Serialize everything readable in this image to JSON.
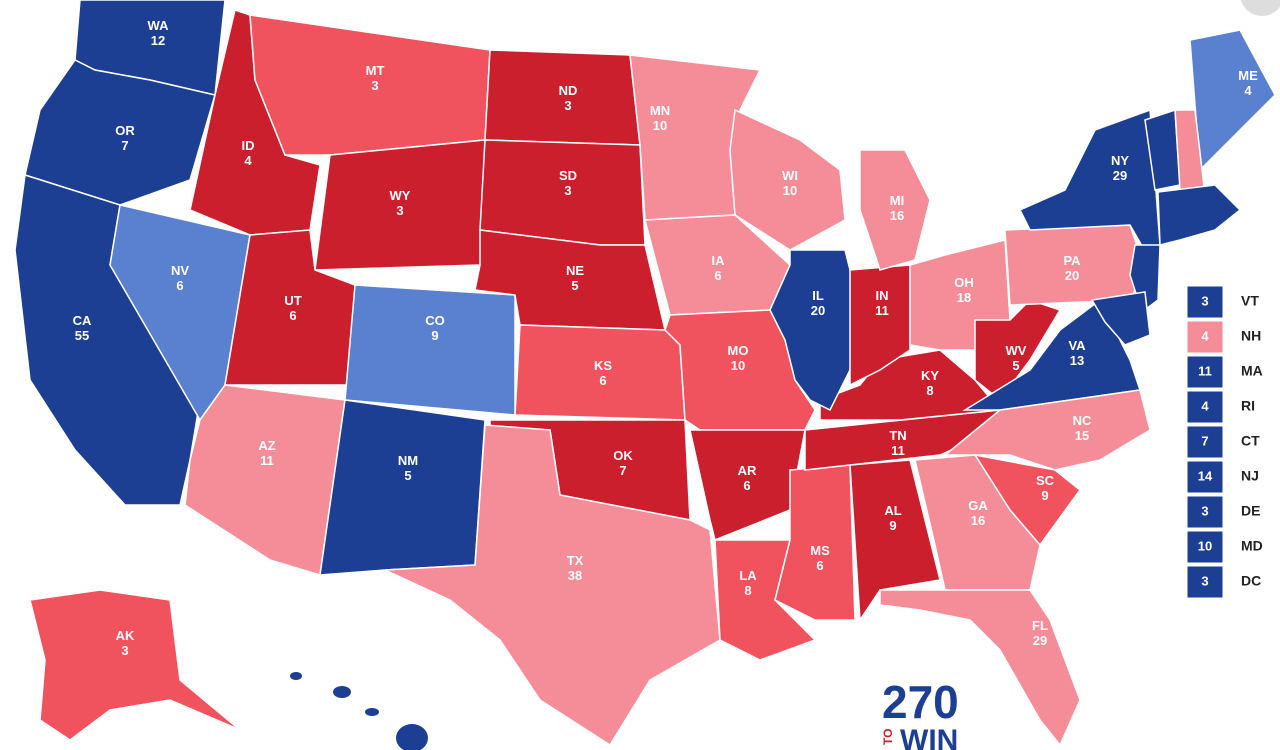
{
  "palette": {
    "safe_dem": "#1d3f93",
    "lean_dem": "#5a80d0",
    "safe_rep": "#cb1f2e",
    "likely_rep": "#f0525e",
    "lean_rep": "#f48d98"
  },
  "states": [
    {
      "abbr": "WA",
      "votes": 12,
      "rating": "safe_dem"
    },
    {
      "abbr": "OR",
      "votes": 7,
      "rating": "safe_dem"
    },
    {
      "abbr": "CA",
      "votes": 55,
      "rating": "safe_dem"
    },
    {
      "abbr": "NV",
      "votes": 6,
      "rating": "lean_dem"
    },
    {
      "abbr": "ID",
      "votes": 4,
      "rating": "safe_rep"
    },
    {
      "abbr": "MT",
      "votes": 3,
      "rating": "likely_rep"
    },
    {
      "abbr": "WY",
      "votes": 3,
      "rating": "safe_rep"
    },
    {
      "abbr": "UT",
      "votes": 6,
      "rating": "safe_rep"
    },
    {
      "abbr": "CO",
      "votes": 9,
      "rating": "lean_dem"
    },
    {
      "abbr": "AZ",
      "votes": 11,
      "rating": "lean_rep"
    },
    {
      "abbr": "NM",
      "votes": 5,
      "rating": "safe_dem"
    },
    {
      "abbr": "ND",
      "votes": 3,
      "rating": "safe_rep"
    },
    {
      "abbr": "SD",
      "votes": 3,
      "rating": "safe_rep"
    },
    {
      "abbr": "NE",
      "votes": 5,
      "rating": "safe_rep"
    },
    {
      "abbr": "KS",
      "votes": 6,
      "rating": "likely_rep"
    },
    {
      "abbr": "OK",
      "votes": 7,
      "rating": "safe_rep"
    },
    {
      "abbr": "TX",
      "votes": 38,
      "rating": "lean_rep"
    },
    {
      "abbr": "MN",
      "votes": 10,
      "rating": "lean_rep"
    },
    {
      "abbr": "IA",
      "votes": 6,
      "rating": "lean_rep"
    },
    {
      "abbr": "MO",
      "votes": 10,
      "rating": "likely_rep"
    },
    {
      "abbr": "AR",
      "votes": 6,
      "rating": "safe_rep"
    },
    {
      "abbr": "LA",
      "votes": 8,
      "rating": "likely_rep"
    },
    {
      "abbr": "MS",
      "votes": 6,
      "rating": "likely_rep"
    },
    {
      "abbr": "AL",
      "votes": 9,
      "rating": "safe_rep"
    },
    {
      "abbr": "TN",
      "votes": 11,
      "rating": "safe_rep"
    },
    {
      "abbr": "KY",
      "votes": 8,
      "rating": "safe_rep"
    },
    {
      "abbr": "IL",
      "votes": 20,
      "rating": "safe_dem"
    },
    {
      "abbr": "IN",
      "votes": 11,
      "rating": "safe_rep"
    },
    {
      "abbr": "WI",
      "votes": 10,
      "rating": "lean_rep"
    },
    {
      "abbr": "MI",
      "votes": 16,
      "rating": "lean_rep"
    },
    {
      "abbr": "OH",
      "votes": 18,
      "rating": "lean_rep"
    },
    {
      "abbr": "WV",
      "votes": 5,
      "rating": "safe_rep"
    },
    {
      "abbr": "PA",
      "votes": 20,
      "rating": "lean_rep"
    },
    {
      "abbr": "NY",
      "votes": 29,
      "rating": "safe_dem"
    },
    {
      "abbr": "VA",
      "votes": 13,
      "rating": "safe_dem"
    },
    {
      "abbr": "NC",
      "votes": 15,
      "rating": "lean_rep"
    },
    {
      "abbr": "SC",
      "votes": 9,
      "rating": "likely_rep"
    },
    {
      "abbr": "GA",
      "votes": 16,
      "rating": "lean_rep"
    },
    {
      "abbr": "FL",
      "votes": 29,
      "rating": "lean_rep"
    },
    {
      "abbr": "ME",
      "votes": 4,
      "rating": "lean_dem"
    },
    {
      "abbr": "AK",
      "votes": 3,
      "rating": "likely_rep"
    }
  ],
  "legend": [
    {
      "abbr": "VT",
      "votes": 3,
      "rating": "safe_dem"
    },
    {
      "abbr": "NH",
      "votes": 4,
      "rating": "lean_rep"
    },
    {
      "abbr": "MA",
      "votes": 11,
      "rating": "safe_dem"
    },
    {
      "abbr": "RI",
      "votes": 4,
      "rating": "safe_dem"
    },
    {
      "abbr": "CT",
      "votes": 7,
      "rating": "safe_dem"
    },
    {
      "abbr": "NJ",
      "votes": 14,
      "rating": "safe_dem"
    },
    {
      "abbr": "DE",
      "votes": 3,
      "rating": "safe_dem"
    },
    {
      "abbr": "MD",
      "votes": 10,
      "rating": "safe_dem"
    },
    {
      "abbr": "DC",
      "votes": 3,
      "rating": "safe_dem"
    }
  ],
  "logo": {
    "number": "270",
    "to": "TO",
    "win": "WIN"
  }
}
